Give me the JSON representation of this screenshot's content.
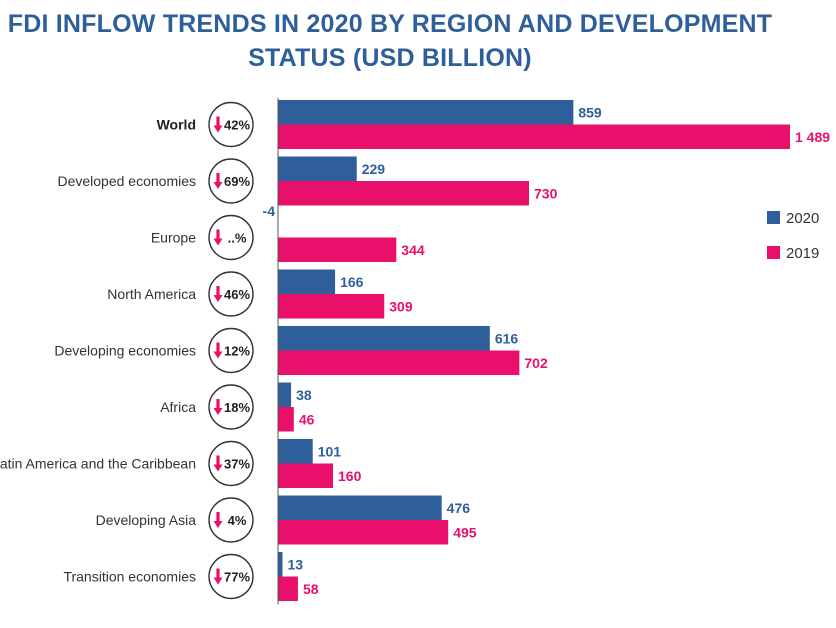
{
  "title": {
    "line1": "FDI INFLOW TRENDS IN 2020 BY REGION AND DEVELOPMENT",
    "line2": "STATUS (USD BILLION)"
  },
  "colors": {
    "2020": "#2f5f9a",
    "2019": "#e8106b",
    "arrow": "#e8106b",
    "badge_border": "#333333"
  },
  "chart_data": {
    "type": "bar",
    "orientation": "horizontal",
    "title": "FDI INFLOW TRENDS IN 2020 BY REGION AND DEVELOPMENT STATUS (USD BILLION)",
    "categories": [
      "World",
      "Developed economies",
      "Europe",
      "North America",
      "Developing economies",
      "Africa",
      "Latin America and the Caribbean",
      "Developing Asia",
      "Transition economies"
    ],
    "series": [
      {
        "name": "2020",
        "values": [
          859,
          229,
          -4,
          166,
          616,
          38,
          101,
          476,
          13
        ],
        "labels": [
          "859",
          "229",
          "-4",
          "166",
          "616",
          "38",
          "101",
          "476",
          "13"
        ]
      },
      {
        "name": "2019",
        "values": [
          1489,
          730,
          344,
          309,
          702,
          46,
          160,
          495,
          58
        ],
        "labels": [
          "1 489",
          "730",
          "344",
          "309",
          "702",
          "46",
          "160",
          "495",
          "58"
        ]
      }
    ],
    "change_badges": [
      "42%",
      "69%",
      "..%",
      "46%",
      "12%",
      "18%",
      "37%",
      "4%",
      "77%"
    ],
    "xlim": [
      0,
      1489
    ],
    "legend": {
      "placement": "right",
      "entries": [
        "2020",
        "2019"
      ]
    },
    "grid": false
  }
}
